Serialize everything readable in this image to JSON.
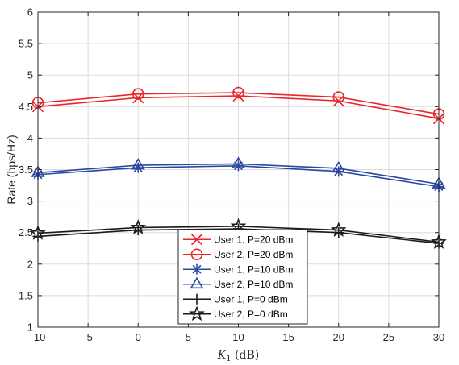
{
  "chart_data": {
    "type": "line",
    "xlabel": {
      "main": "K",
      "sub": "1",
      "unit": " (dB)"
    },
    "ylabel": "Rate (bps/Hz)",
    "xlim": [
      -10,
      30
    ],
    "ylim": [
      1,
      6
    ],
    "xticks": [
      -10,
      -5,
      0,
      5,
      10,
      15,
      20,
      25,
      30
    ],
    "yticks": [
      1,
      1.5,
      2,
      2.5,
      3,
      3.5,
      4,
      4.5,
      5,
      5.5,
      6
    ],
    "grid": true,
    "legend_position": "bottom-center",
    "x": [
      -10,
      0,
      10,
      20,
      30
    ],
    "series": [
      {
        "name": "User 1, P=20 dBm",
        "color": "#e8262c",
        "marker": "x",
        "values": [
          4.5,
          4.64,
          4.67,
          4.59,
          4.31
        ]
      },
      {
        "name": "User 2, P=20 dBm",
        "color": "#e8262c",
        "marker": "circle",
        "values": [
          4.56,
          4.7,
          4.72,
          4.65,
          4.38
        ]
      },
      {
        "name": "User 1, P=10 dBm",
        "color": "#2b47a0",
        "marker": "asterisk",
        "values": [
          3.42,
          3.53,
          3.56,
          3.47,
          3.23
        ]
      },
      {
        "name": "User 2, P=10 dBm",
        "color": "#2b47a0",
        "marker": "triangle",
        "values": [
          3.45,
          3.57,
          3.59,
          3.52,
          3.27
        ]
      },
      {
        "name": "User 1, P=0 dBm",
        "color": "#1a1a1a",
        "marker": "plus",
        "values": [
          2.44,
          2.54,
          2.56,
          2.5,
          2.33
        ]
      },
      {
        "name": "User 2, P=0 dBm",
        "color": "#1a1a1a",
        "marker": "star",
        "values": [
          2.49,
          2.58,
          2.6,
          2.54,
          2.35
        ]
      }
    ]
  }
}
